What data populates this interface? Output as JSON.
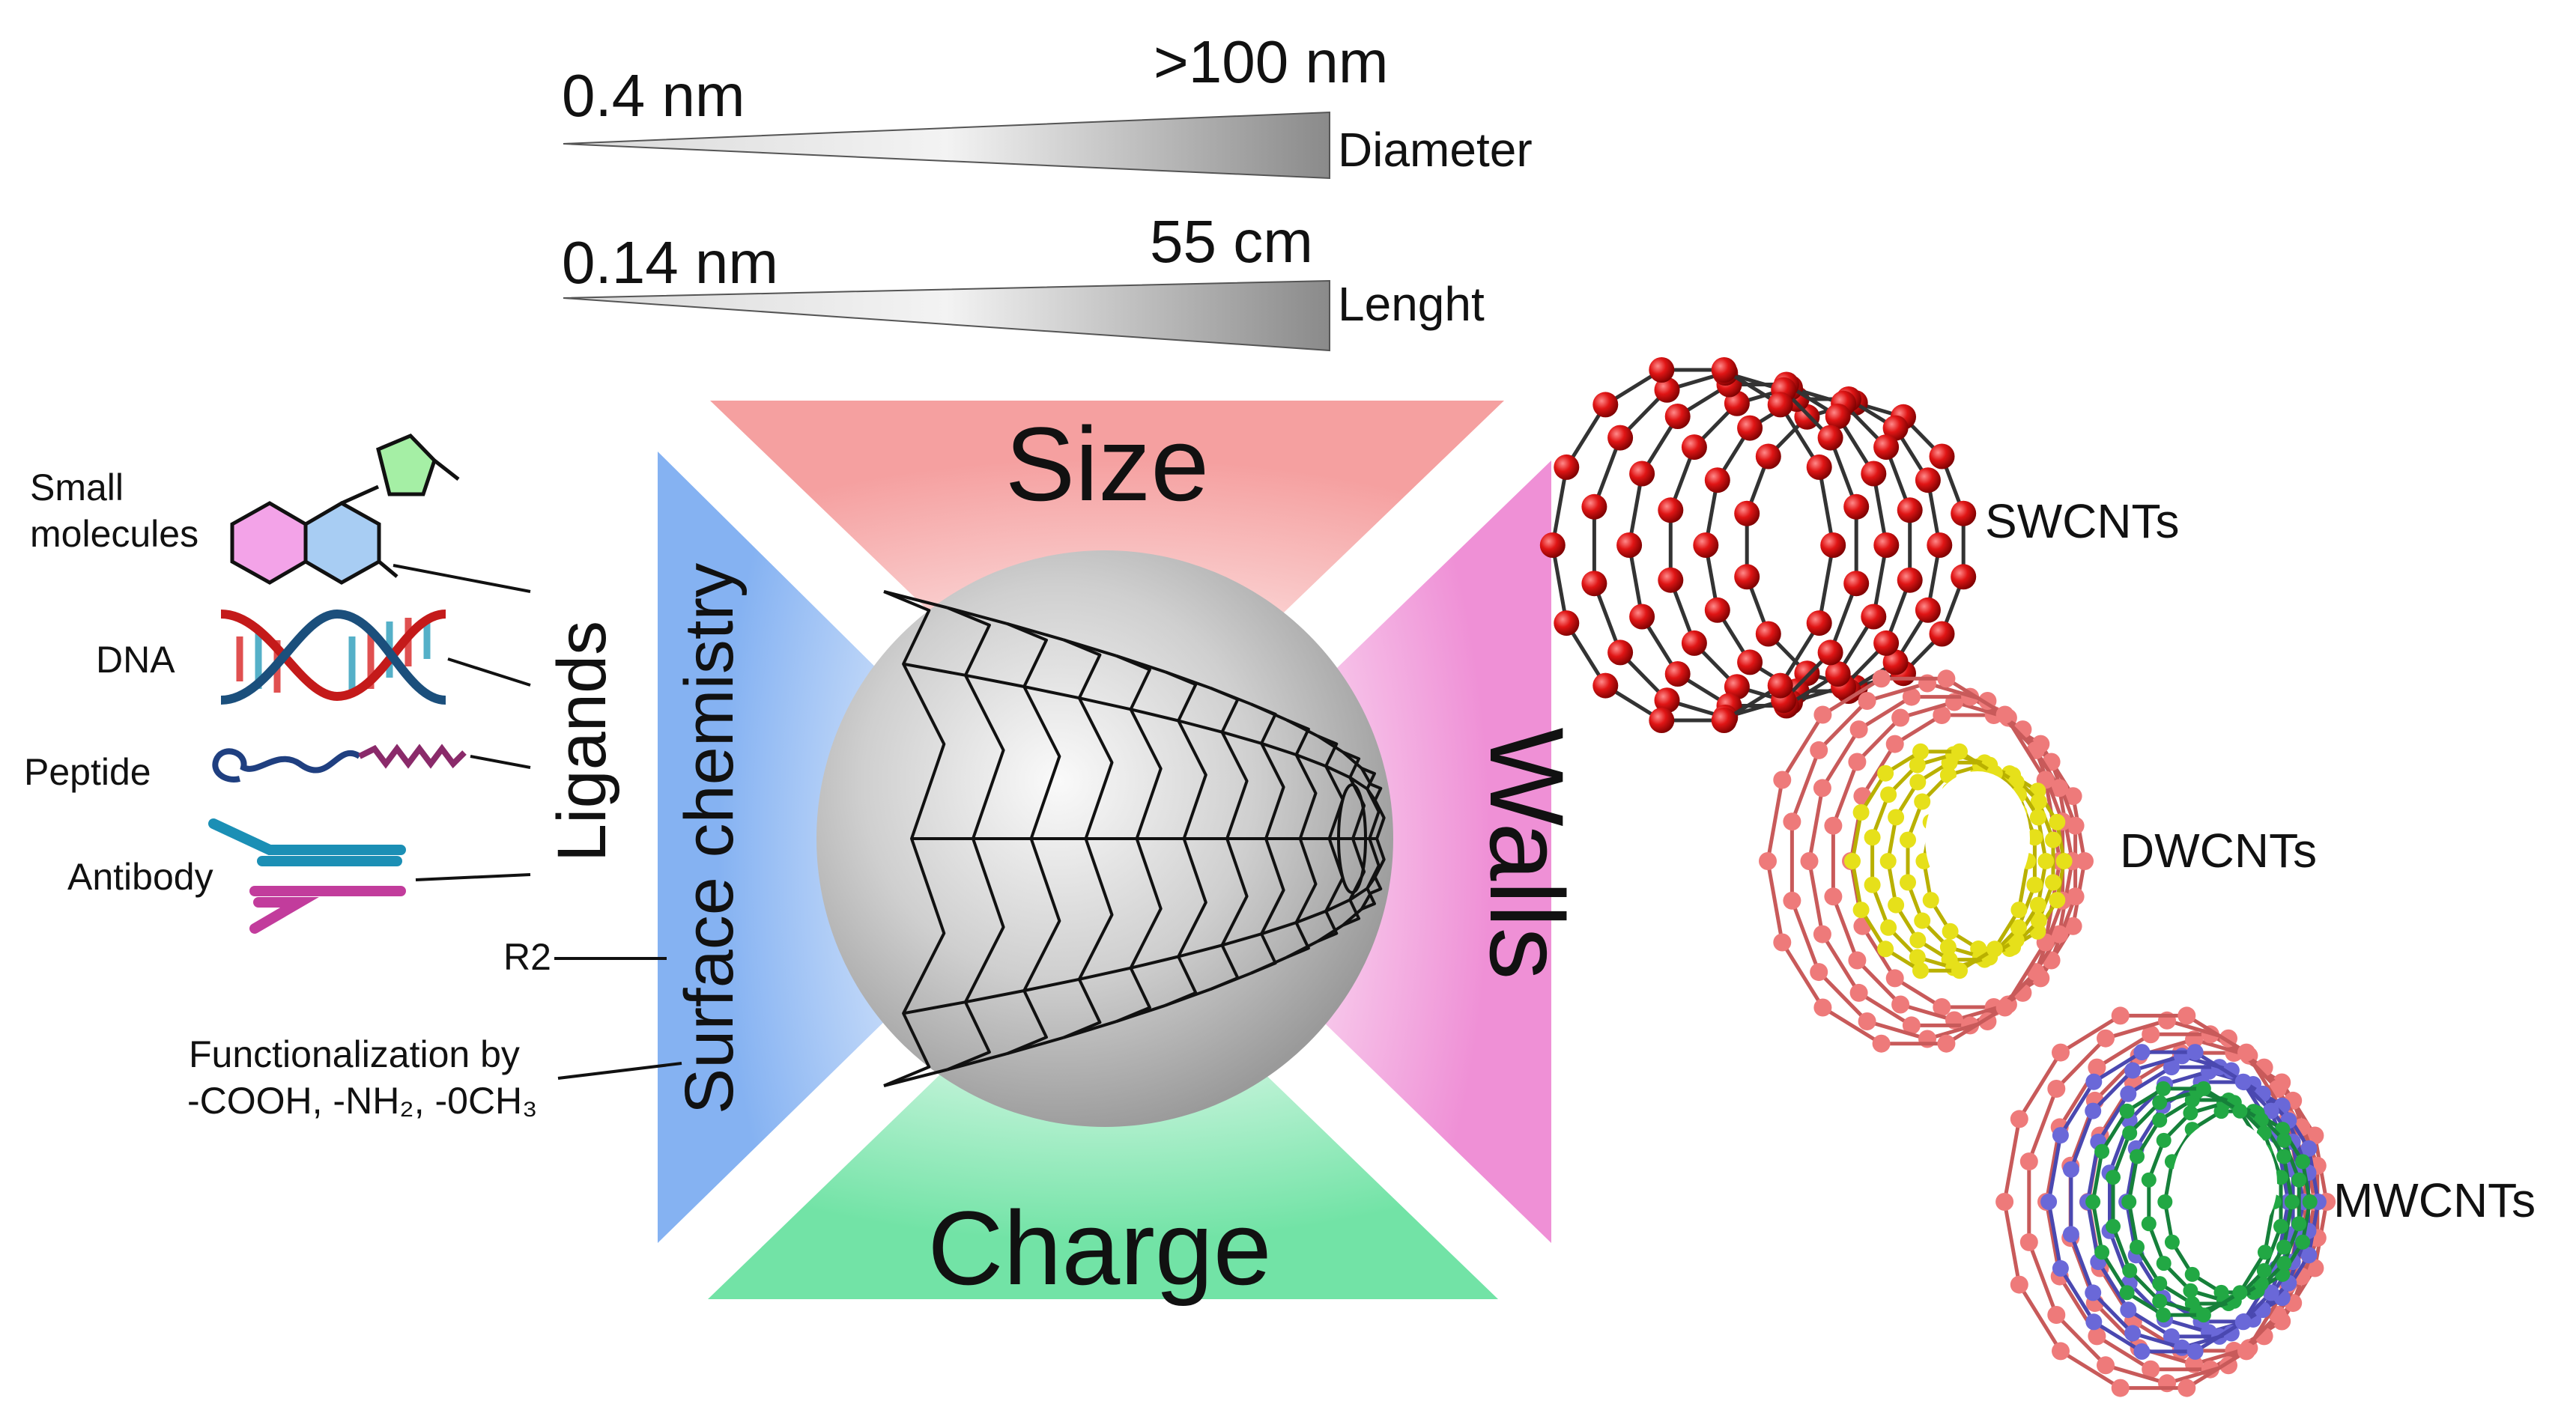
{
  "scale": {
    "diameter": {
      "min": "0.4 nm",
      "max": ">100 nm",
      "label": "Diameter"
    },
    "length": {
      "min": "0.14 nm",
      "max": "55 cm",
      "label": "Lenght"
    }
  },
  "properties": {
    "size": "Size",
    "walls": "Walls",
    "charge": "Charge",
    "surface": "Surface chemistry",
    "ligands": "Ligands"
  },
  "ligands": {
    "small_molecules": "Small molecules",
    "small_molecules_line1": "Small",
    "small_molecules_line2": "molecules",
    "dna": "DNA",
    "peptide": "Peptide",
    "antibody": "Antibody",
    "r2": "R2",
    "functionalization_line1": "Functionalization by",
    "functionalization_line2": "-COOH, -NH₂, -0CH₃"
  },
  "cnt_types": {
    "swcnt": "SWCNTs",
    "dwcnt": "DWCNTs",
    "mwcnt": "MWCNTs"
  },
  "colors": {
    "size": "#f59a9a",
    "walls": "#f08ad6",
    "charge": "#6ee3a5",
    "surface": "#7faef2",
    "sw": "#dd1111",
    "dw_outer": "#ee7a7a",
    "dw_inner": "#e6e01a",
    "mw_mid": "#6a68d8",
    "mw_inner": "#22a844",
    "tube_line": "#111111"
  }
}
